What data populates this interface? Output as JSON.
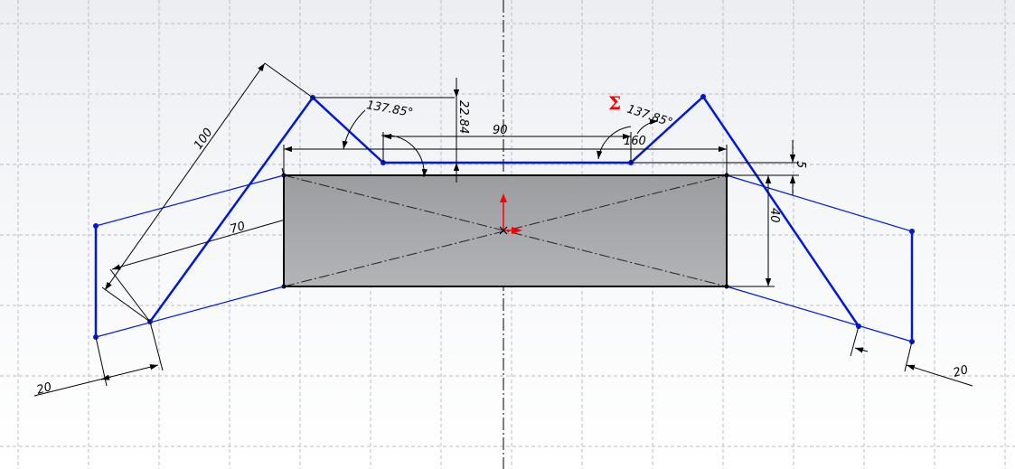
{
  "colors": {
    "background_top": "#eef0f3",
    "background_bottom": "#ffffff",
    "grid": "#b9bdc4",
    "centerline": "#000000",
    "rect_fill": "#a9aaae",
    "sketch_blue": "#0019d6",
    "dimension": "#000000",
    "origin_red": "#ff0000"
  },
  "dimensions": {
    "d_100": "100",
    "d_70": "70",
    "d_angle_left": "137.85°",
    "d_angle_right": "137.85°",
    "d_22_84": "22.84",
    "d_90": "90",
    "d_160": "160",
    "d_5": "5",
    "d_40": "40",
    "d_20_left": "20",
    "d_20_right": "20"
  },
  "symbols": {
    "sigma": "Σ"
  }
}
